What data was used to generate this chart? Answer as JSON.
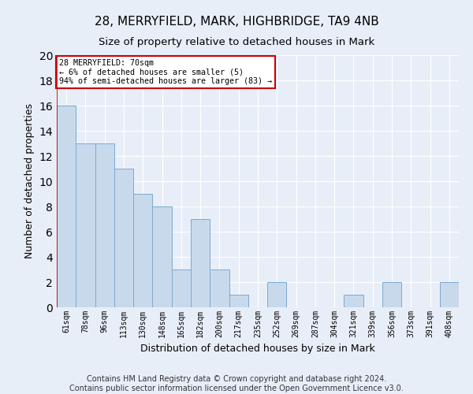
{
  "title1": "28, MERRYFIELD, MARK, HIGHBRIDGE, TA9 4NB",
  "title2": "Size of property relative to detached houses in Mark",
  "xlabel": "Distribution of detached houses by size in Mark",
  "ylabel": "Number of detached properties",
  "bar_labels": [
    "61sqm",
    "78sqm",
    "96sqm",
    "113sqm",
    "130sqm",
    "148sqm",
    "165sqm",
    "182sqm",
    "200sqm",
    "217sqm",
    "235sqm",
    "252sqm",
    "269sqm",
    "287sqm",
    "304sqm",
    "321sqm",
    "339sqm",
    "356sqm",
    "373sqm",
    "391sqm",
    "408sqm"
  ],
  "bar_values": [
    16,
    13,
    13,
    11,
    9,
    8,
    3,
    7,
    3,
    1,
    0,
    2,
    0,
    0,
    0,
    1,
    0,
    2,
    0,
    0,
    2
  ],
  "bar_color": "#c9d9ec",
  "bar_edge_color": "#7aaad0",
  "annotation_box_text": "28 MERRYFIELD: 70sqm\n← 6% of detached houses are smaller (5)\n94% of semi-detached houses are larger (83) →",
  "annotation_box_color": "#ffffff",
  "annotation_box_edge_color": "#cc0000",
  "vline_color": "#cc0000",
  "ylim": [
    0,
    20
  ],
  "yticks": [
    0,
    2,
    4,
    6,
    8,
    10,
    12,
    14,
    16,
    18,
    20
  ],
  "footnote": "Contains HM Land Registry data © Crown copyright and database right 2024.\nContains public sector information licensed under the Open Government Licence v3.0.",
  "bg_color": "#e8eef8",
  "plot_bg_color": "#e8eef8",
  "grid_color": "#ffffff",
  "title1_fontsize": 11,
  "title2_fontsize": 9.5,
  "xlabel_fontsize": 9,
  "ylabel_fontsize": 9,
  "footnote_fontsize": 7,
  "tick_fontsize": 7
}
